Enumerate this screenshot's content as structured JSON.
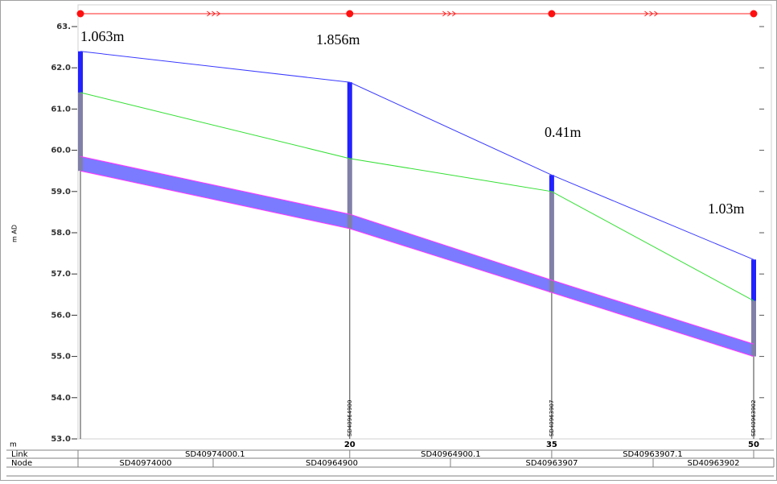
{
  "chart_data": {
    "type": "line",
    "x_label": "m",
    "y_label": "m AD",
    "x": [
      0,
      20,
      35,
      50
    ],
    "xlim": [
      0,
      50
    ],
    "xticks": [
      20,
      35,
      50
    ],
    "ylim": [
      53,
      63
    ],
    "yticks": [
      {
        "value": 53,
        "label": "53.0"
      },
      {
        "value": 54,
        "label": "54.0"
      },
      {
        "value": 55,
        "label": "55.0"
      },
      {
        "value": 56,
        "label": "56.0"
      },
      {
        "value": 57,
        "label": "57.0"
      },
      {
        "value": 58,
        "label": "58.0"
      },
      {
        "value": 59,
        "label": "59.0"
      },
      {
        "value": 60,
        "label": "60.0"
      },
      {
        "value": 61,
        "label": "61.0"
      },
      {
        "value": 62,
        "label": "62.0"
      },
      {
        "value": 63,
        "label": "63."
      }
    ],
    "series": [
      {
        "color": "#3a3aff",
        "values": [
          62.4,
          61.65,
          59.4,
          57.35
        ]
      },
      {
        "color": "#33e033",
        "values": [
          61.4,
          59.8,
          59.0,
          56.35
        ]
      },
      {
        "color": "#ff33ff",
        "values": [
          59.85,
          58.45,
          56.85,
          55.3
        ]
      },
      {
        "color": "#ff33ff",
        "values": [
          59.5,
          58.1,
          56.55,
          55.0
        ]
      }
    ],
    "pipe_fill": "#7b7bff",
    "annotations": [
      "1.063m",
      "1.856m",
      "0.41m",
      "1.03m"
    ],
    "node_labels": [
      null,
      "SD40964900",
      "SD40963907",
      "SD40963902"
    ],
    "table": {
      "headers": [
        "Link",
        "Node"
      ],
      "links": [
        "SD40974000.1",
        "SD40964900.1",
        "SD40963907.1"
      ],
      "nodes": [
        "SD40974000",
        "SD40964900",
        "SD40963907",
        "SD40963902"
      ]
    }
  }
}
